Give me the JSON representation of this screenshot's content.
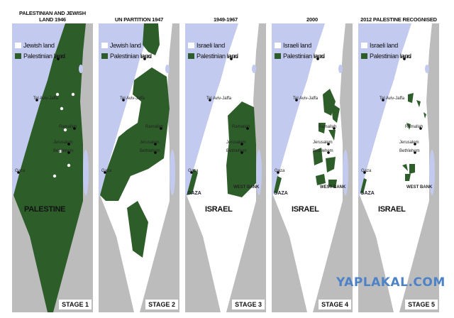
{
  "colors": {
    "sea": "#c3caf0",
    "green": "#2d5e2a",
    "land": "#ffffff",
    "ground": "#bdbcbc"
  },
  "panels": [
    {
      "title": "PALESTINIAN AND JEWISH LAND 1946",
      "legend": [
        "Jewish land",
        "Palestinian land"
      ],
      "stage": "STAGE 1",
      "country": "PALESTINE",
      "cities": {
        "haifa": "Haifa",
        "telaviv": "Tel Aviv-Jaffa",
        "ramallah": "Ramallah",
        "jerusalem": "Jerusalem",
        "bethlehem": "Bethlehem",
        "gaza": "Gaza"
      },
      "extra": {}
    },
    {
      "title": "UN PARTITION 1947",
      "legend": [
        "Jewish land",
        "Palestinian land"
      ],
      "stage": "STAGE 2",
      "country": "",
      "cities": {
        "haifa": "Haifa",
        "telaviv": "Tel Aviv-Jaffa",
        "ramallah": "Ramallah",
        "jerusalem": "Jerusalem",
        "bethlehem": "Bethlehem",
        "gaza": "Gaza"
      },
      "extra": {}
    },
    {
      "title": "1949-1967",
      "legend": [
        "Israeli land",
        "Palestinian land"
      ],
      "stage": "STAGE 3",
      "country": "ISRAEL",
      "cities": {
        "haifa": "Haifa",
        "telaviv": "Tel Aviv-Jaffa",
        "ramallah": "Ramallah",
        "jerusalem": "Jerusalem",
        "bethlehem": "Bethlehem",
        "gaza": "Gaza"
      },
      "extra": {
        "westbank": "WEST BANK",
        "gazalabel": "GAZA"
      }
    },
    {
      "title": "2000",
      "legend": [
        "Israeli land",
        "Palestinian land"
      ],
      "stage": "STAGE 4",
      "country": "ISRAEL",
      "cities": {
        "haifa": "Haifa",
        "telaviv": "Tel Aviv-Jaffa",
        "ramallah": "Ramallah",
        "jerusalem": "Jerusalem",
        "bethlehem": "Bethlehem",
        "gaza": "Gaza"
      },
      "extra": {
        "westbank": "WEST BANK",
        "gazalabel": "GAZA"
      }
    },
    {
      "title": "2012 PALESTINE RECOGNISED",
      "legend": [
        "Israeli land",
        "Palestinian land"
      ],
      "stage": "STAGE 5",
      "country": "ISRAEL",
      "cities": {
        "haifa": "Haifa",
        "telaviv": "Tel Aviv-Jaffa",
        "ramallah": "Ramallah",
        "jerusalem": "Jerusalem",
        "bethlehem": "Bethlehem",
        "gaza": "Gaza"
      },
      "extra": {
        "westbank": "WEST BANK",
        "gazalabel": "GAZA"
      }
    }
  ],
  "watermark": "YAPLAKAL.COM"
}
